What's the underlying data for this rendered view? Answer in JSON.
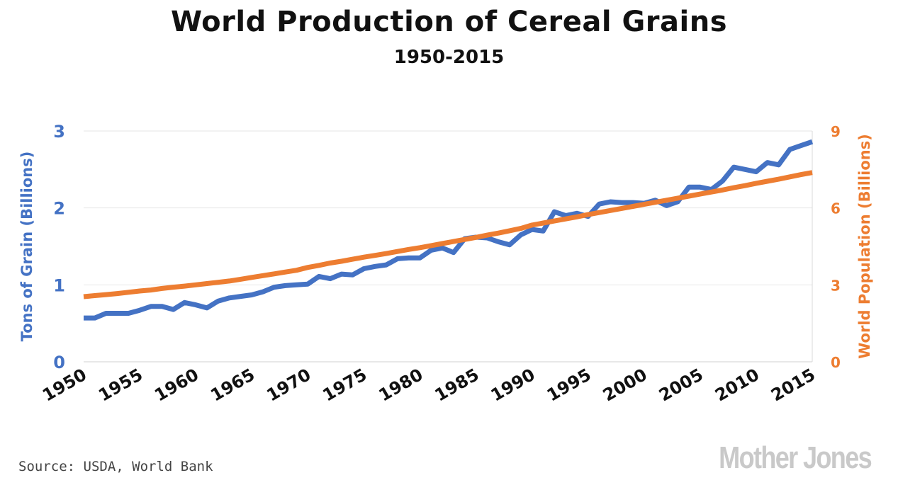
{
  "title": "World Production of Cereal Grains",
  "subtitle": "1950-2015",
  "source": "Source: USDA, World Bank",
  "logo_text": "Mother Jones",
  "chart_data": {
    "type": "line",
    "title": "World Production of Cereal Grains",
    "subtitle": "1950-2015",
    "x": [
      1950,
      1951,
      1952,
      1953,
      1954,
      1955,
      1956,
      1957,
      1958,
      1959,
      1960,
      1961,
      1962,
      1963,
      1964,
      1965,
      1966,
      1967,
      1968,
      1969,
      1970,
      1971,
      1972,
      1973,
      1974,
      1975,
      1976,
      1977,
      1978,
      1979,
      1980,
      1981,
      1982,
      1983,
      1984,
      1985,
      1986,
      1987,
      1988,
      1989,
      1990,
      1991,
      1992,
      1993,
      1994,
      1995,
      1996,
      1997,
      1998,
      1999,
      2000,
      2001,
      2002,
      2003,
      2004,
      2005,
      2006,
      2007,
      2008,
      2009,
      2010,
      2011,
      2012,
      2013,
      2014,
      2015
    ],
    "xticks": [
      "1950",
      "1955",
      "1960",
      "1965",
      "1970",
      "1975",
      "1980",
      "1985",
      "1990",
      "1995",
      "2000",
      "2005",
      "2010",
      "2015"
    ],
    "xlim": [
      1950,
      2015
    ],
    "grid": true,
    "series": [
      {
        "name": "Tons of Grain (Billions)",
        "axis": "left",
        "color": "#4472C4",
        "values": [
          0.57,
          0.57,
          0.63,
          0.63,
          0.63,
          0.67,
          0.72,
          0.72,
          0.68,
          0.77,
          0.74,
          0.7,
          0.79,
          0.83,
          0.85,
          0.87,
          0.91,
          0.97,
          0.99,
          1.0,
          1.01,
          1.11,
          1.08,
          1.14,
          1.13,
          1.21,
          1.24,
          1.26,
          1.34,
          1.35,
          1.35,
          1.45,
          1.48,
          1.42,
          1.6,
          1.62,
          1.61,
          1.56,
          1.52,
          1.65,
          1.72,
          1.7,
          1.95,
          1.9,
          1.93,
          1.89,
          2.05,
          2.08,
          2.07,
          2.07,
          2.06,
          2.1,
          2.03,
          2.08,
          2.27,
          2.27,
          2.24,
          2.35,
          2.53,
          2.5,
          2.47,
          2.59,
          2.56,
          2.76,
          2.81,
          2.86
        ]
      },
      {
        "name": "World Population (Billions)",
        "axis": "right",
        "color": "#ED7D31",
        "values": [
          2.54,
          2.58,
          2.62,
          2.66,
          2.71,
          2.76,
          2.8,
          2.86,
          2.91,
          2.95,
          3.0,
          3.05,
          3.1,
          3.15,
          3.22,
          3.29,
          3.36,
          3.43,
          3.5,
          3.57,
          3.68,
          3.76,
          3.85,
          3.92,
          4.0,
          4.08,
          4.15,
          4.22,
          4.3,
          4.38,
          4.45,
          4.53,
          4.61,
          4.69,
          4.77,
          4.85,
          4.94,
          5.02,
          5.11,
          5.2,
          5.33,
          5.41,
          5.49,
          5.57,
          5.65,
          5.74,
          5.82,
          5.9,
          5.98,
          6.06,
          6.14,
          6.22,
          6.3,
          6.38,
          6.46,
          6.54,
          6.62,
          6.7,
          6.79,
          6.87,
          6.96,
          7.04,
          7.12,
          7.21,
          7.3,
          7.38
        ]
      }
    ],
    "y_left": {
      "label": "Tons of Grain (Billions)",
      "ylim": [
        0,
        3
      ],
      "ticks": [
        "0",
        "1",
        "2",
        "3"
      ],
      "color": "#4472C4"
    },
    "y_right": {
      "label": "World Population (Billions)",
      "ylim": [
        0,
        9
      ],
      "ticks": [
        "0",
        "3",
        "6",
        "9"
      ],
      "color": "#ED7D31"
    }
  }
}
